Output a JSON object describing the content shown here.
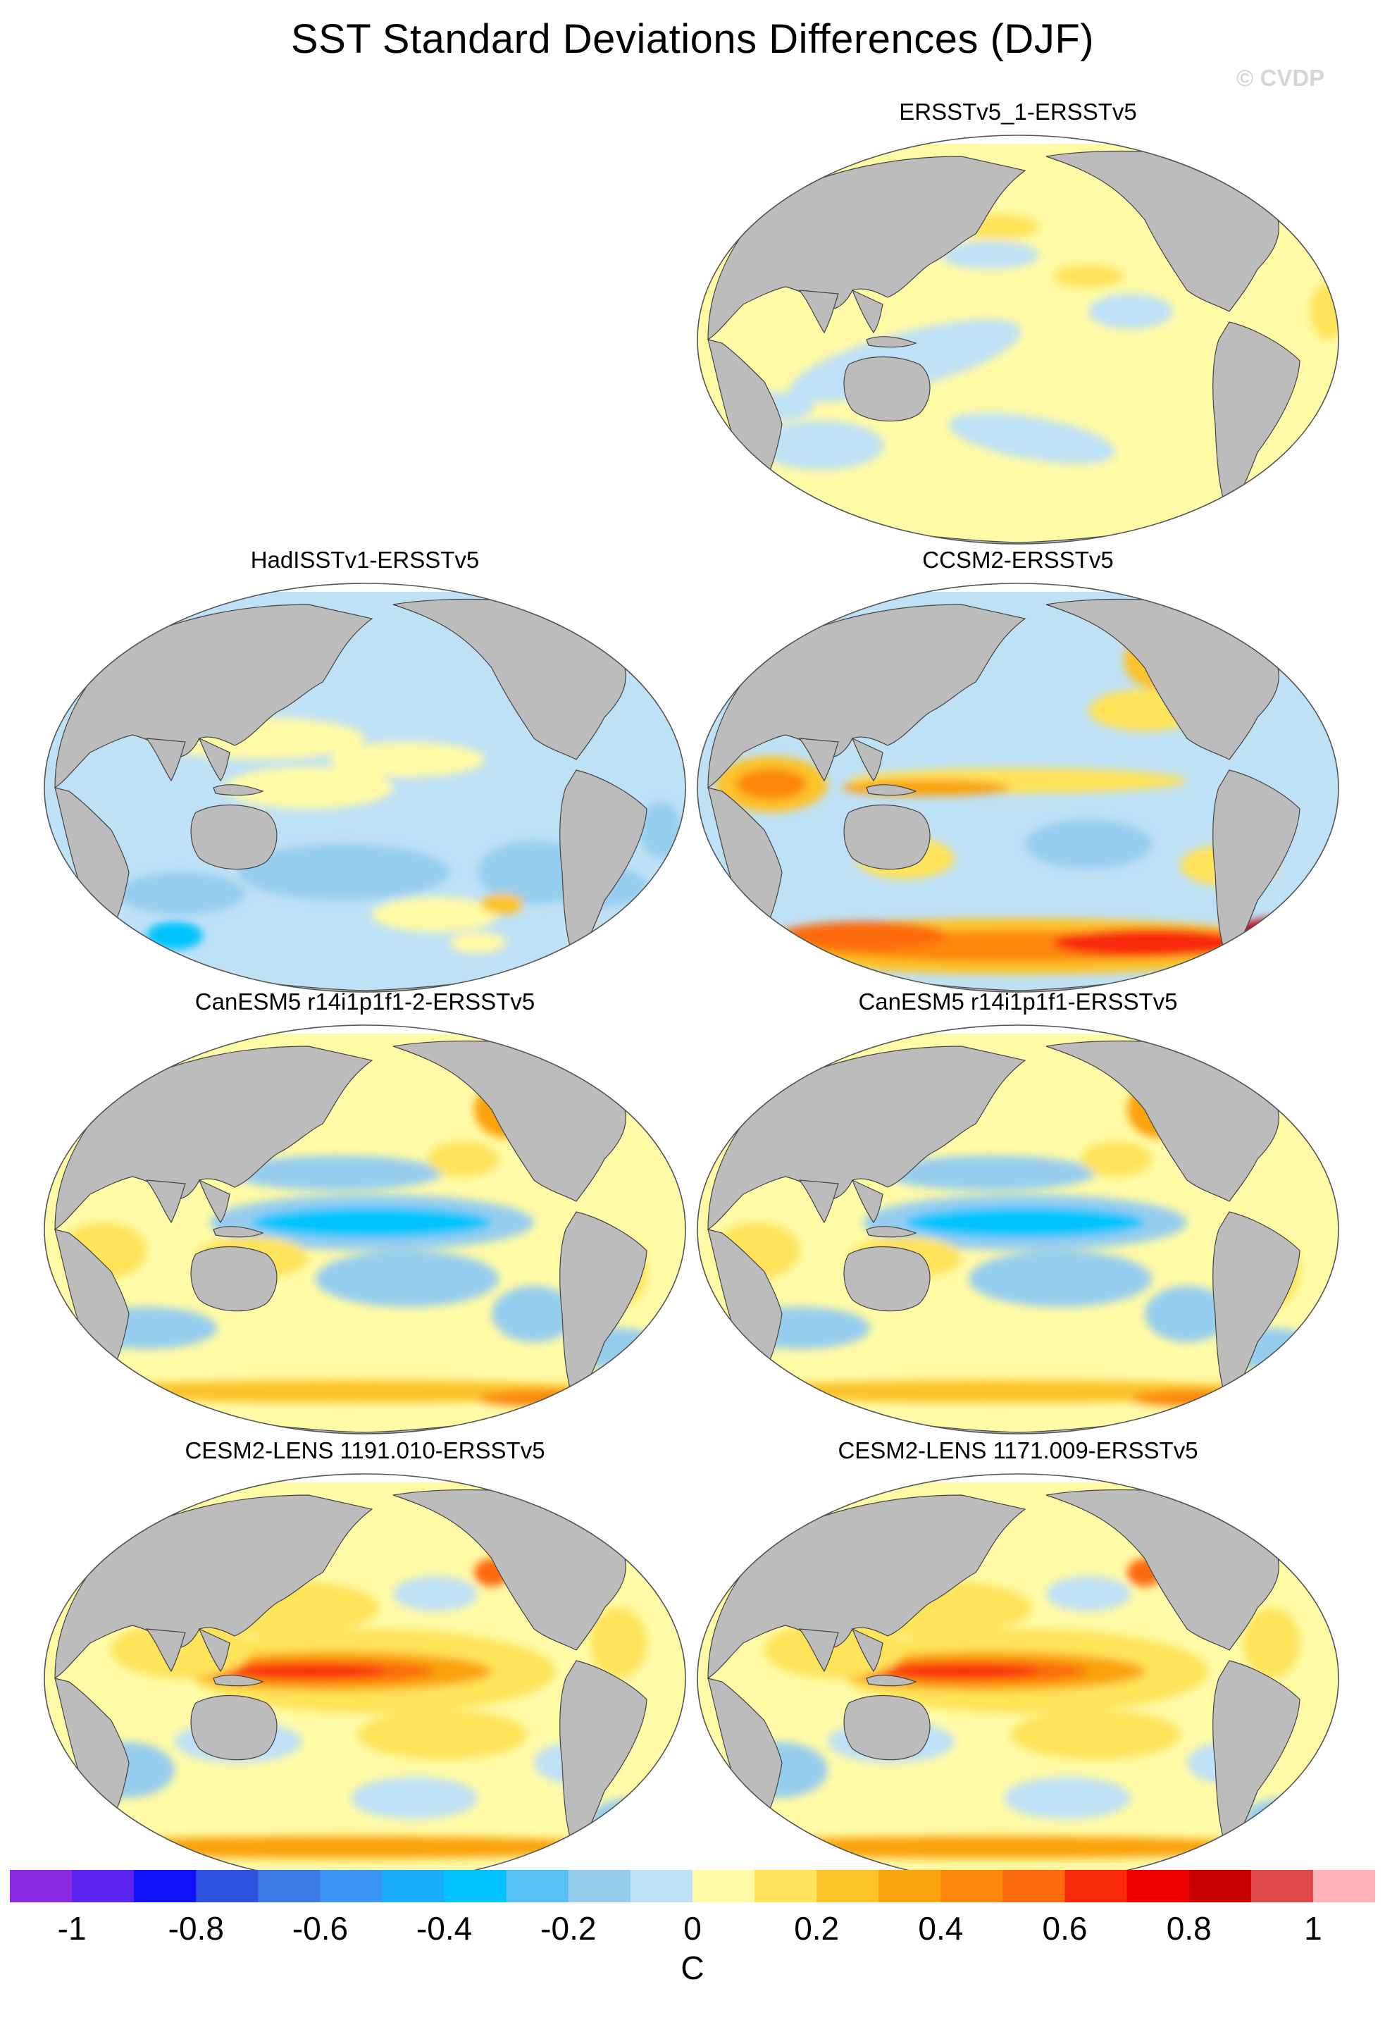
{
  "title": "SST Standard Deviations Differences (DJF)",
  "watermark": "© CVDP",
  "panels": [
    {
      "label": "ERSSTv5_1-ERSSTv5",
      "pattern": "near-zero"
    },
    {
      "label": "HadISSTv1-ERSSTv5",
      "pattern": "mostly-negative"
    },
    {
      "label": "CCSM2-ERSSTv5",
      "pattern": "southern-positive"
    },
    {
      "label": "CanESM5 r14i1p1f1-2-ERSSTv5",
      "pattern": "equatorial-negative"
    },
    {
      "label": "CanESM5 r14i1p1f1-ERSSTv5",
      "pattern": "equatorial-negative"
    },
    {
      "label": "CESM2-LENS 1191.010-ERSSTv5",
      "pattern": "equatorial-positive"
    },
    {
      "label": "CESM2-LENS 1171.009-ERSSTv5",
      "pattern": "equatorial-positive"
    }
  ],
  "colorbar": {
    "units": "C",
    "colors": [
      "#8a2be2",
      "#5a24f0",
      "#1111f5",
      "#2e52e0",
      "#3c78e8",
      "#3a95f5",
      "#18aef8",
      "#00c3ff",
      "#58c2f4",
      "#96cdee",
      "#bfe1f6",
      "#fffaa6",
      "#ffe35a",
      "#fcc329",
      "#faa30b",
      "#fc870d",
      "#fc6a0d",
      "#f8290d",
      "#ee0000",
      "#c80000",
      "#de4a4a",
      "#ffb3b8"
    ],
    "ticks": [
      "-1",
      "-0.8",
      "-0.6",
      "-0.4",
      "-0.2",
      "0",
      "0.2",
      "0.4",
      "0.6",
      "0.8",
      "1"
    ]
  },
  "map_colors": {
    "land": "#bcbcbc",
    "coast": "#444444",
    "sea_ice": "#ffffff"
  }
}
